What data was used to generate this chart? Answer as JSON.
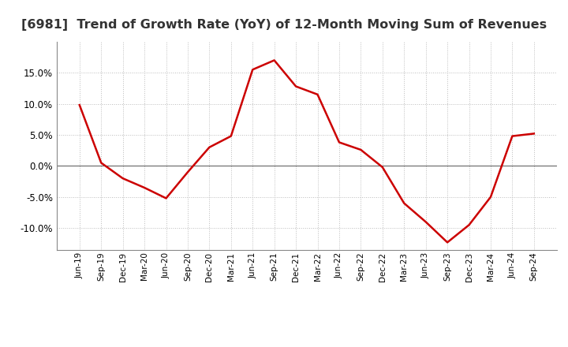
{
  "title": "[6981]  Trend of Growth Rate (YoY) of 12-Month Moving Sum of Revenues",
  "title_fontsize": 11.5,
  "line_color": "#cc0000",
  "line_width": 1.8,
  "background_color": "#ffffff",
  "grid_color": "#bbbbbb",
  "ylim": [
    -0.135,
    0.2
  ],
  "yticks": [
    -0.1,
    -0.05,
    0.0,
    0.05,
    0.1,
    0.15
  ],
  "labels": [
    "Jun-19",
    "Sep-19",
    "Dec-19",
    "Mar-20",
    "Jun-20",
    "Sep-20",
    "Dec-20",
    "Mar-21",
    "Jun-21",
    "Sep-21",
    "Dec-21",
    "Mar-22",
    "Jun-22",
    "Sep-22",
    "Dec-22",
    "Mar-23",
    "Jun-23",
    "Sep-23",
    "Dec-23",
    "Mar-24",
    "Jun-24",
    "Sep-24"
  ],
  "values": [
    0.098,
    0.005,
    -0.02,
    -0.035,
    -0.052,
    -0.01,
    0.03,
    0.048,
    0.155,
    0.17,
    0.128,
    0.115,
    0.038,
    0.026,
    -0.002,
    -0.06,
    -0.09,
    -0.123,
    -0.095,
    -0.05,
    0.048,
    0.052
  ]
}
